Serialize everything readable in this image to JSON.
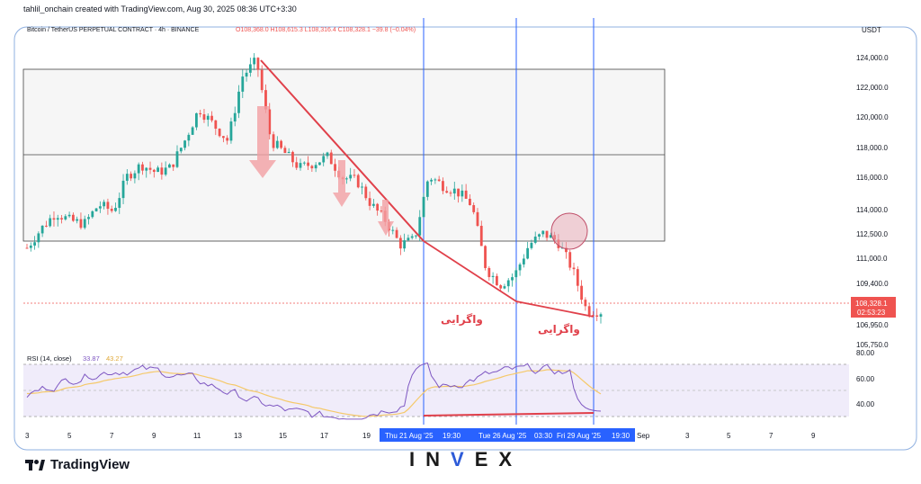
{
  "header": {
    "created_by": "tahlil_onchain created with TradingView.com, Aug 30, 2025 08:36 UTC+3:30",
    "symbol_line": "Bitcoin / TetherUS PERPETUAL CONTRACT · 4h · BINANCE",
    "ohlc": "O108,368.0  H108,615.3  L108,316.4  C108,328.1  −39.8 (−0.04%)",
    "currency": "USDT"
  },
  "price_axis": {
    "labels": [
      "124,000.0",
      "122,000.0",
      "120,000.0",
      "118,000.0",
      "116,000.0",
      "114,000.0",
      "112,500.0",
      "111,000.0",
      "109,400.0",
      "106,950.0",
      "105,750.0"
    ],
    "last_price": "108,328.1",
    "countdown": "02:53:23"
  },
  "rsi": {
    "title": "RSI (14, close)",
    "value_rsi": "33.87",
    "value_ma": "43.27",
    "axis_labels": [
      "80.00",
      "60.00",
      "40.00"
    ]
  },
  "time_axis": {
    "ticks": [
      "3",
      "5",
      "7",
      "9",
      "11",
      "13",
      "15",
      "17",
      "19",
      "Sep",
      "3",
      "5",
      "7",
      "9"
    ],
    "highlights": [
      "Thu 21 Aug '25",
      "19:30",
      "Tue 26 Aug '25",
      "03:30",
      "Fri 29 Aug '25",
      "19:30"
    ]
  },
  "annotations": {
    "divergence_1": "واگرایی",
    "divergence_2": "واگرایی"
  },
  "colors": {
    "up": "#26a69a",
    "down": "#ef5350",
    "trend": "#e0404a",
    "vline": "#2962ff",
    "rsi_line": "#7e57c2",
    "rsi_ma": "#f5c96a"
  },
  "branding": {
    "tradingview": "TradingView",
    "watermark_a": "IN",
    "watermark_v": "V",
    "watermark_b": "EX"
  },
  "chart_data": {
    "type": "candlestick",
    "timeframe": "4h",
    "y_range": [
      105750,
      125000
    ],
    "support_resistance": [
      123300,
      117500,
      112200
    ],
    "candles_sample_close": [
      112300,
      113500,
      114500,
      114000,
      113800,
      115000,
      114600,
      116800,
      117500,
      117000,
      117300,
      119000,
      121000,
      120000,
      119000,
      123000,
      124000,
      119000,
      118200,
      117300,
      117600,
      118000,
      116700,
      116500,
      115000,
      114000,
      112500,
      112800,
      116800,
      116200,
      115800,
      115000,
      111000,
      110000,
      110600,
      112500,
      113200,
      112700,
      111000,
      108400,
      108328
    ],
    "rsi": {
      "indicator": "RSI (14, close)",
      "last_rsi": 33.87,
      "last_ma": 43.27,
      "levels": [
        70,
        50,
        30
      ]
    },
    "annotations": [
      {
        "text": "واگرایی",
        "at": "Aug 21–26 '25"
      },
      {
        "text": "واگرایی",
        "at": "Aug 26–29 '25"
      }
    ]
  }
}
